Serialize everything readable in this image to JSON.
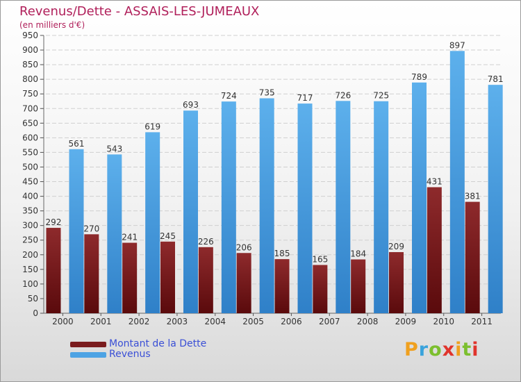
{
  "title": "Revenus/Dette - ASSAIS-LES-JUMEAUX",
  "subtitle": "(en milliers d'€)",
  "colors": {
    "dette": "#7a1c1e",
    "revenus": "#4da3e4",
    "title": "#b01f5a",
    "legend_text": "#3a4fd6"
  },
  "legend": [
    {
      "label": "Montant de la Dette",
      "color": "#7a1c1e"
    },
    {
      "label": "Revenus",
      "color": "#4da3e4"
    }
  ],
  "logo": "Proxiti",
  "chart_data": {
    "type": "bar",
    "title": "Revenus/Dette - ASSAIS-LES-JUMEAUX",
    "subtitle": "(en milliers d'€)",
    "categories": [
      "2000",
      "2001",
      "2002",
      "2003",
      "2004",
      "2005",
      "2006",
      "2007",
      "2008",
      "2009",
      "2010",
      "2011"
    ],
    "series": [
      {
        "name": "Montant de la Dette",
        "values": [
          292,
          270,
          241,
          245,
          226,
          206,
          185,
          165,
          184,
          209,
          431,
          381
        ]
      },
      {
        "name": "Revenus",
        "values": [
          561,
          543,
          619,
          693,
          724,
          735,
          717,
          726,
          725,
          789,
          897,
          781
        ]
      }
    ],
    "ylim": [
      0,
      950
    ],
    "yticks": [
      0,
      50,
      100,
      150,
      200,
      250,
      300,
      350,
      400,
      450,
      500,
      550,
      600,
      650,
      700,
      750,
      800,
      850,
      900,
      950
    ],
    "grid": true,
    "legend_position": "bottom-left"
  }
}
